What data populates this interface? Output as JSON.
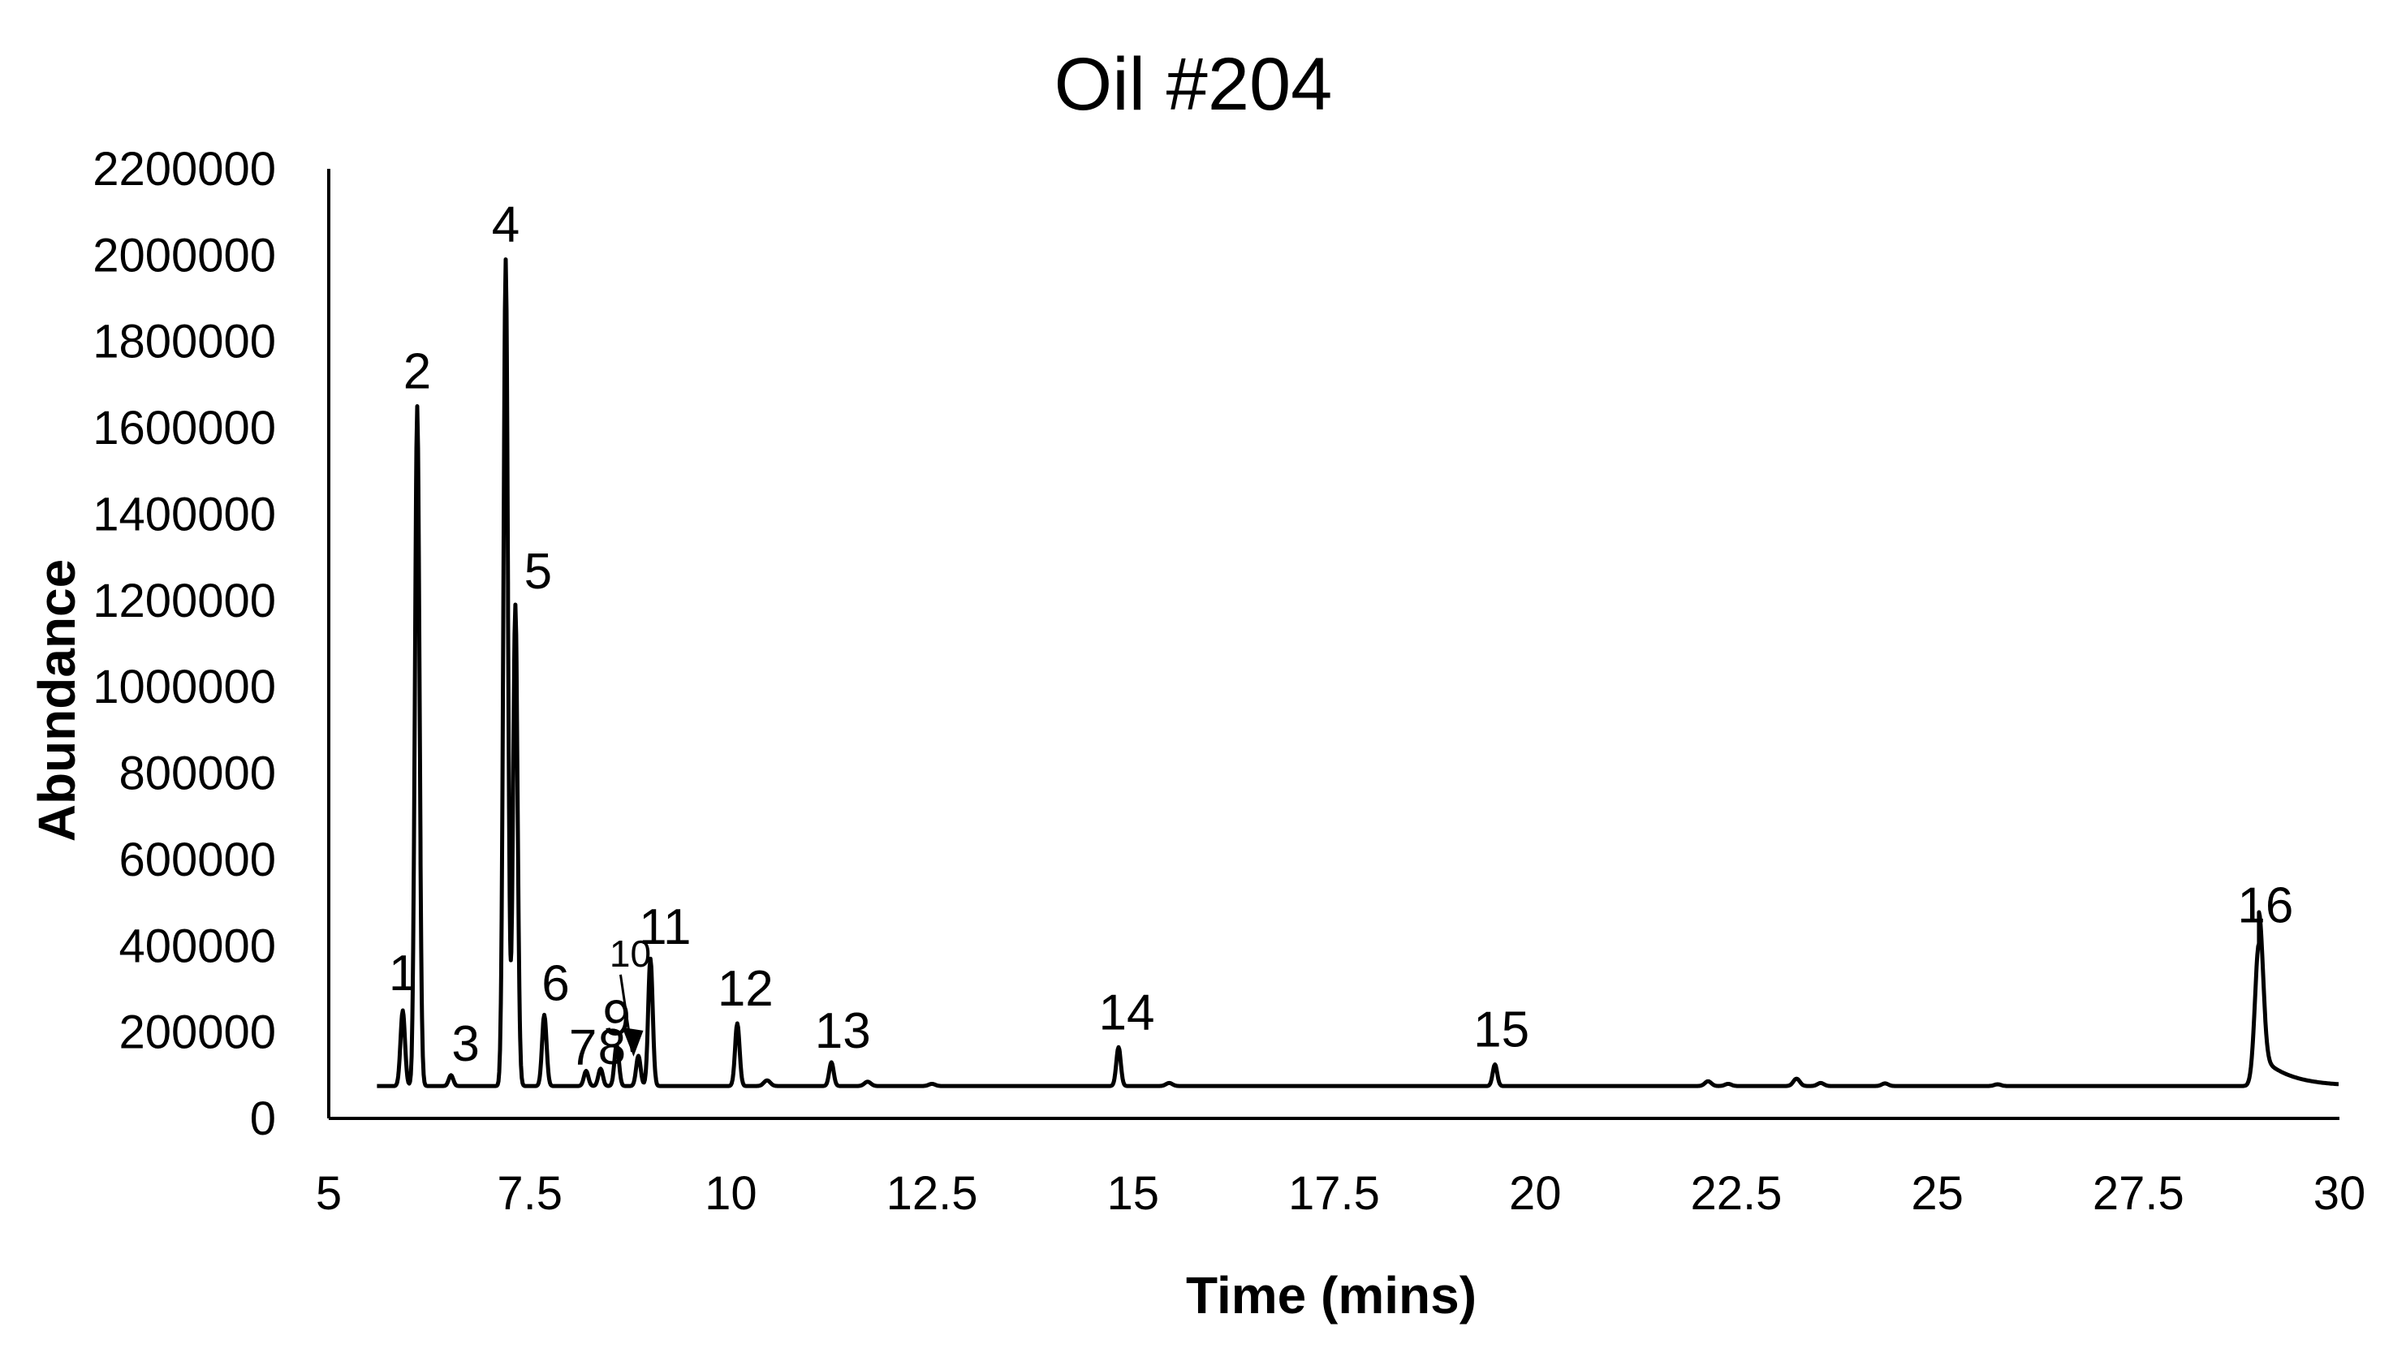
{
  "chart_data": {
    "type": "line",
    "title": "Oil #204",
    "xlabel": "Time (mins)",
    "ylabel": "Abundance",
    "xlim": [
      5,
      30
    ],
    "ylim": [
      0,
      2200000
    ],
    "xticks": [
      "5",
      "7.5",
      "10",
      "12.5",
      "15",
      "17.5",
      "20",
      "22.5",
      "25",
      "27.5",
      "30"
    ],
    "yticks": [
      "0",
      "200000",
      "400000",
      "600000",
      "800000",
      "1000000",
      "1200000",
      "1400000",
      "1600000",
      "1800000",
      "2000000",
      "2200000"
    ],
    "baseline": 75000,
    "grid": false,
    "legend": "none",
    "series": [
      {
        "peaks": [
          {
            "label": "1",
            "x": 5.92,
            "y": 250000
          },
          {
            "label": "2",
            "x": 6.1,
            "y": 1650000
          },
          {
            "label": "3",
            "x": 6.52,
            "y": 100000
          },
          {
            "label": "4",
            "x": 7.2,
            "y": 1990000
          },
          {
            "label": "5",
            "x": 7.32,
            "y": 1190000
          },
          {
            "label": "6",
            "x": 7.68,
            "y": 240000
          },
          {
            "label": "7",
            "x": 8.2,
            "y": 110000
          },
          {
            "label": "8",
            "x": 8.38,
            "y": 115000
          },
          {
            "label": "9",
            "x": 8.58,
            "y": 170000
          },
          {
            "label": "10",
            "x": 8.85,
            "y": 145000
          },
          {
            "label": "11",
            "x": 9.0,
            "y": 370000
          },
          {
            "label": "12",
            "x": 10.08,
            "y": 220000
          },
          {
            "label": "13",
            "x": 11.25,
            "y": 130000
          },
          {
            "label": "14",
            "x": 14.82,
            "y": 165000
          },
          {
            "label": "15",
            "x": 19.5,
            "y": 125000
          },
          {
            "label": "16",
            "x": 29.0,
            "y": 405000
          }
        ],
        "minor_peaks": [
          {
            "x": 10.45,
            "y": 88000
          },
          {
            "x": 11.7,
            "y": 85000
          },
          {
            "x": 12.5,
            "y": 80000
          },
          {
            "x": 15.45,
            "y": 82000
          },
          {
            "x": 22.15,
            "y": 86000
          },
          {
            "x": 22.4,
            "y": 80000
          },
          {
            "x": 23.25,
            "y": 92000
          },
          {
            "x": 23.55,
            "y": 82000
          },
          {
            "x": 24.35,
            "y": 81000
          },
          {
            "x": 25.75,
            "y": 79000
          }
        ]
      }
    ]
  }
}
